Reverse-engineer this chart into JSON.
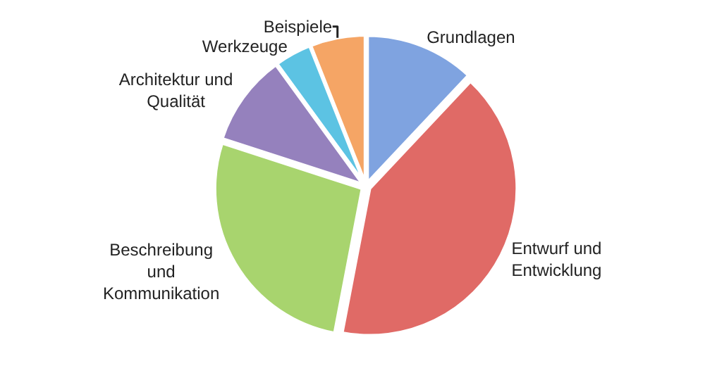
{
  "chart_data": {
    "type": "pie",
    "categories": [
      "Grundlagen",
      "Entwurf und\nEntwicklung",
      "Beschreibung\nund\nKommunikation",
      "Architektur und\nQualität",
      "Werkzeuge",
      "Beispiele"
    ],
    "values": [
      12,
      41,
      27,
      10,
      4,
      6
    ],
    "colors": [
      "#7fa3e0",
      "#e06a66",
      "#a8d46e",
      "#9581bd",
      "#5cc3e3",
      "#f5a565"
    ],
    "legend": false
  }
}
